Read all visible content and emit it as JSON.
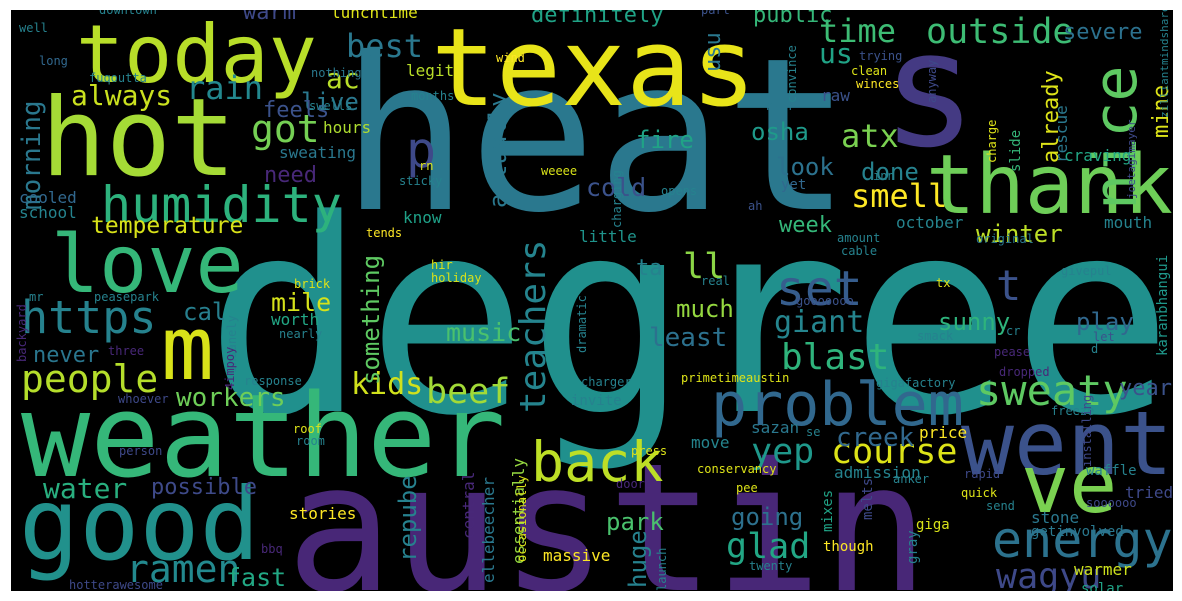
{
  "chart_data": {
    "type": "wordcloud",
    "background": "#000000",
    "colormap": "viridis",
    "words": [
      {
        "text": "degree",
        "color": "#20908d"
      },
      {
        "text": "heat",
        "color": "#2a788e"
      },
      {
        "text": "austin",
        "color": "#482777"
      },
      {
        "text": "texas",
        "color": "#e8e419"
      },
      {
        "text": "s",
        "color": "#443a83"
      },
      {
        "text": "weather",
        "color": "#35b779"
      },
      {
        "text": "hot",
        "color": "#a5db36"
      },
      {
        "text": "today",
        "color": "#b8de29"
      },
      {
        "text": "good",
        "color": "#21918c"
      },
      {
        "text": "thank",
        "color": "#6ece58"
      },
      {
        "text": "went",
        "color": "#3b528b"
      },
      {
        "text": "love",
        "color": "#35b779"
      },
      {
        "text": "ve",
        "color": "#7ad151"
      },
      {
        "text": "m",
        "color": "#d8e219"
      },
      {
        "text": "problem",
        "color": "#31688e"
      },
      {
        "text": "nice",
        "color": "#5ec962"
      },
      {
        "text": "humidity",
        "color": "#2db27d"
      },
      {
        "text": "energy",
        "color": "#2c728e"
      },
      {
        "text": "back",
        "color": "#bddf26"
      },
      {
        "text": "sweaty",
        "color": "#5ec962"
      },
      {
        "text": "https",
        "color": "#26828e"
      },
      {
        "text": "people",
        "color": "#b5de2b"
      },
      {
        "text": "course",
        "color": "#dde318"
      },
      {
        "text": "outside",
        "color": "#3dbc74"
      },
      {
        "text": "ramen",
        "color": "#23898e"
      },
      {
        "text": "wagyu",
        "color": "#3e4989"
      },
      {
        "text": "set",
        "color": "#365d8d"
      },
      {
        "text": "blast",
        "color": "#2fb47c"
      },
      {
        "text": "got",
        "color": "#75d054"
      },
      {
        "text": "time",
        "color": "#3dbc74"
      },
      {
        "text": "water",
        "color": "#29af7f"
      },
      {
        "text": "teachers",
        "color": "#25848e"
      },
      {
        "text": "beef",
        "color": "#a2da37"
      },
      {
        "text": "giant",
        "color": "#25858e"
      },
      {
        "text": "glad",
        "color": "#22a785"
      },
      {
        "text": "yep",
        "color": "#1f988b"
      },
      {
        "text": "rain",
        "color": "#23888e"
      },
      {
        "text": "always",
        "color": "#cae11f"
      },
      {
        "text": "kids",
        "color": "#d0e11c"
      },
      {
        "text": "best",
        "color": "#2a788e"
      },
      {
        "text": "p",
        "color": "#3e4989"
      },
      {
        "text": "smell",
        "color": "#fde725"
      },
      {
        "text": "atx",
        "color": "#7ad151"
      },
      {
        "text": "t",
        "color": "#3b528b"
      },
      {
        "text": "ll",
        "color": "#8bd646"
      },
      {
        "text": "us",
        "color": "#20a386"
      },
      {
        "text": "temperature",
        "color": "#d8e219"
      },
      {
        "text": "morning",
        "color": "#2a788e"
      },
      {
        "text": "workers",
        "color": "#6ece58"
      },
      {
        "text": "creek",
        "color": "#31688e"
      },
      {
        "text": "park",
        "color": "#4ac16d"
      },
      {
        "text": "mile",
        "color": "#d5e21a"
      },
      {
        "text": "fast",
        "color": "#22a884"
      },
      {
        "text": "music",
        "color": "#4ac16d"
      },
      {
        "text": "least",
        "color": "#2c718e"
      },
      {
        "text": "much",
        "color": "#95d840"
      },
      {
        "text": "sunny",
        "color": "#2eb37c"
      },
      {
        "text": "play",
        "color": "#31688e"
      },
      {
        "text": "look",
        "color": "#2c728e"
      },
      {
        "text": "osha",
        "color": "#1f9a8a"
      },
      {
        "text": "done",
        "color": "#26828e"
      },
      {
        "text": "fire",
        "color": "#20a386"
      },
      {
        "text": "cold",
        "color": "#3b528b"
      },
      {
        "text": "ac",
        "color": "#b8de29"
      },
      {
        "text": "live",
        "color": "#2a788e"
      },
      {
        "text": "warm",
        "color": "#3e4989"
      },
      {
        "text": "cal",
        "color": "#277f8e"
      },
      {
        "text": "never",
        "color": "#2a768e"
      },
      {
        "text": "possible",
        "color": "#3e4a89"
      },
      {
        "text": "something",
        "color": "#5ec962"
      },
      {
        "text": "actually",
        "color": "#2a788e"
      },
      {
        "text": "repube",
        "color": "#26818e"
      },
      {
        "text": "huge",
        "color": "#26818e"
      },
      {
        "text": "going",
        "color": "#2d718e"
      },
      {
        "text": "week",
        "color": "#35b779"
      },
      {
        "text": "winter",
        "color": "#bddf26"
      },
      {
        "text": "year",
        "color": "#3b528b"
      },
      {
        "text": "severe",
        "color": "#2c718e"
      },
      {
        "text": "mine",
        "color": "#dde318"
      },
      {
        "text": "already",
        "color": "#dde318"
      },
      {
        "text": "definitely",
        "color": "#20a386"
      },
      {
        "text": "public",
        "color": "#35b779"
      },
      {
        "text": "usu",
        "color": "#2a788e"
      },
      {
        "text": "need",
        "color": "#482878"
      },
      {
        "text": "feels",
        "color": "#3b528b"
      },
      {
        "text": "ta",
        "color": "#26828e"
      },
      {
        "text": "little",
        "color": "#1f948c"
      },
      {
        "text": "know",
        "color": "#1fa188"
      },
      {
        "text": "legit",
        "color": "#b8de29"
      },
      {
        "text": "worth",
        "color": "#22a785"
      },
      {
        "text": "stories",
        "color": "#fde725"
      },
      {
        "text": "price",
        "color": "#fde725"
      },
      {
        "text": "move",
        "color": "#25858e"
      },
      {
        "text": "sazan",
        "color": "#2a788e"
      },
      {
        "text": "mouth",
        "color": "#25838e"
      },
      {
        "text": "october",
        "color": "#25848e"
      },
      {
        "text": "craving",
        "color": "#22a785"
      },
      {
        "text": "rescue",
        "color": "#2a788e"
      },
      {
        "text": "admission",
        "color": "#25838e"
      },
      {
        "text": "tried",
        "color": "#3e4989"
      },
      {
        "text": "stone",
        "color": "#2a788e"
      },
      {
        "text": "warmer",
        "color": "#cde11d"
      },
      {
        "text": "cooled",
        "color": "#31688e"
      },
      {
        "text": "school",
        "color": "#25838e"
      },
      {
        "text": "sweating",
        "color": "#2a788e"
      },
      {
        "text": "raw",
        "color": "#3b528b"
      },
      {
        "text": "lunchtime",
        "color": "#dde318"
      },
      {
        "text": "hours",
        "color": "#addc30"
      },
      {
        "text": "central",
        "color": "#482878"
      },
      {
        "text": "ellebeecher",
        "color": "#2a788e"
      },
      {
        "text": "essentially",
        "color": "#95d840"
      },
      {
        "text": "massive",
        "color": "#fde725"
      },
      {
        "text": "though",
        "color": "#fde725"
      },
      {
        "text": "giga",
        "color": "#d8e219"
      },
      {
        "text": "gray",
        "color": "#26818e"
      },
      {
        "text": "solar",
        "color": "#20a386"
      },
      {
        "text": "getinvolved",
        "color": "#2a788e"
      },
      {
        "text": "karanbhangui",
        "color": "#1f988b"
      },
      {
        "text": "mixes",
        "color": "#20a386"
      },
      {
        "text": "melts",
        "color": "#3e4989"
      },
      {
        "text": "downtown",
        "color": "#26828e"
      },
      {
        "text": "well",
        "color": "#26828e"
      },
      {
        "text": "long",
        "color": "#31688e"
      },
      {
        "text": "fuqoutta",
        "color": "#26828e"
      },
      {
        "text": "nothing",
        "color": "#2a788e"
      },
      {
        "text": "wind",
        "color": "#fde725"
      },
      {
        "text": "months",
        "color": "#26828e"
      },
      {
        "text": "swells",
        "color": "#26828e"
      },
      {
        "text": "convince",
        "color": "#26828e"
      },
      {
        "text": "hair",
        "color": "#2a788e"
      },
      {
        "text": "winces",
        "color": "#fde725"
      },
      {
        "text": "clean",
        "color": "#dde318"
      },
      {
        "text": "trying",
        "color": "#3b528b"
      },
      {
        "text": "part",
        "color": "#3b528b"
      },
      {
        "text": "zilliantmindshare",
        "color": "#26828e"
      },
      {
        "text": "joetagimayer",
        "color": "#3e4989"
      },
      {
        "text": "anyway",
        "color": "#3e4989"
      },
      {
        "text": "slide",
        "color": "#35b779"
      },
      {
        "text": "charge",
        "color": "#dde318"
      },
      {
        "text": "inn",
        "color": "#26828e"
      },
      {
        "text": "yet",
        "color": "#31688e"
      },
      {
        "text": "ah",
        "color": "#3b528b"
      },
      {
        "text": "weeee",
        "color": "#d8e219"
      },
      {
        "text": "sticky",
        "color": "#26828e"
      },
      {
        "text": "rn",
        "color": "#dde318"
      },
      {
        "text": "opens",
        "color": "#26828e"
      },
      {
        "text": "charging",
        "color": "#26828e"
      },
      {
        "text": "amount",
        "color": "#26828e"
      },
      {
        "text": "cable",
        "color": "#26828e"
      },
      {
        "text": "original",
        "color": "#2a788e"
      },
      {
        "text": "tends",
        "color": "#fde725"
      },
      {
        "text": "hir",
        "color": "#dde318"
      },
      {
        "text": "holiday",
        "color": "#d8e219"
      },
      {
        "text": "real",
        "color": "#26828e"
      },
      {
        "text": "dramatic",
        "color": "#26828e"
      },
      {
        "text": "gooooooo",
        "color": "#3b528b"
      },
      {
        "text": "tx",
        "color": "#dde318"
      },
      {
        "text": "givepul",
        "color": "#26828e"
      },
      {
        "text": "brick",
        "color": "#dde318"
      },
      {
        "text": "peasepark",
        "color": "#26828e"
      },
      {
        "text": "mr",
        "color": "#26828e"
      },
      {
        "text": "backyard",
        "color": "#482878"
      },
      {
        "text": "three",
        "color": "#482878"
      },
      {
        "text": "insanely",
        "color": "#26828e"
      },
      {
        "text": "4impoy",
        "color": "#482878"
      },
      {
        "text": "nearly",
        "color": "#26828e"
      },
      {
        "text": "response",
        "color": "#26828e"
      },
      {
        "text": "whoever",
        "color": "#3e4989"
      },
      {
        "text": "roof",
        "color": "#dde318"
      },
      {
        "text": "room",
        "color": "#26828e"
      },
      {
        "text": "person",
        "color": "#3e4989"
      },
      {
        "text": "charger",
        "color": "#26828e"
      },
      {
        "text": "invite",
        "color": "#26828e"
      },
      {
        "text": "primetimeaustin",
        "color": "#dde318"
      },
      {
        "text": "smack",
        "color": "#26828e"
      },
      {
        "text": "cr",
        "color": "#26828e"
      },
      {
        "text": "pease",
        "color": "#482878"
      },
      {
        "text": "let",
        "color": "#3b528b"
      },
      {
        "text": "d",
        "color": "#26828e"
      },
      {
        "text": "dropped",
        "color": "#482878"
      },
      {
        "text": "gigafactory",
        "color": "#26828e"
      },
      {
        "text": "freeze",
        "color": "#26828e"
      },
      {
        "text": "installing",
        "color": "#3e4989"
      },
      {
        "text": "se",
        "color": "#26828e"
      },
      {
        "text": "press",
        "color": "#dde318"
      },
      {
        "text": "conservancy",
        "color": "#dde318"
      },
      {
        "text": "anker",
        "color": "#26828e"
      },
      {
        "text": "rapid",
        "color": "#3e4989"
      },
      {
        "text": "waffle",
        "color": "#26828e"
      },
      {
        "text": "pee",
        "color": "#dde318"
      },
      {
        "text": "quick",
        "color": "#dde318"
      },
      {
        "text": "send",
        "color": "#26828e"
      },
      {
        "text": "soooooo",
        "color": "#3e4989"
      },
      {
        "text": "bbq",
        "color": "#482878"
      },
      {
        "text": "doors",
        "color": "#482878"
      },
      {
        "text": "occasionally",
        "color": "#dde318"
      },
      {
        "text": "launch",
        "color": "#26828e"
      },
      {
        "text": "twenty",
        "color": "#26828e"
      },
      {
        "text": "hotterawesome",
        "color": "#3e4989"
      }
    ]
  }
}
